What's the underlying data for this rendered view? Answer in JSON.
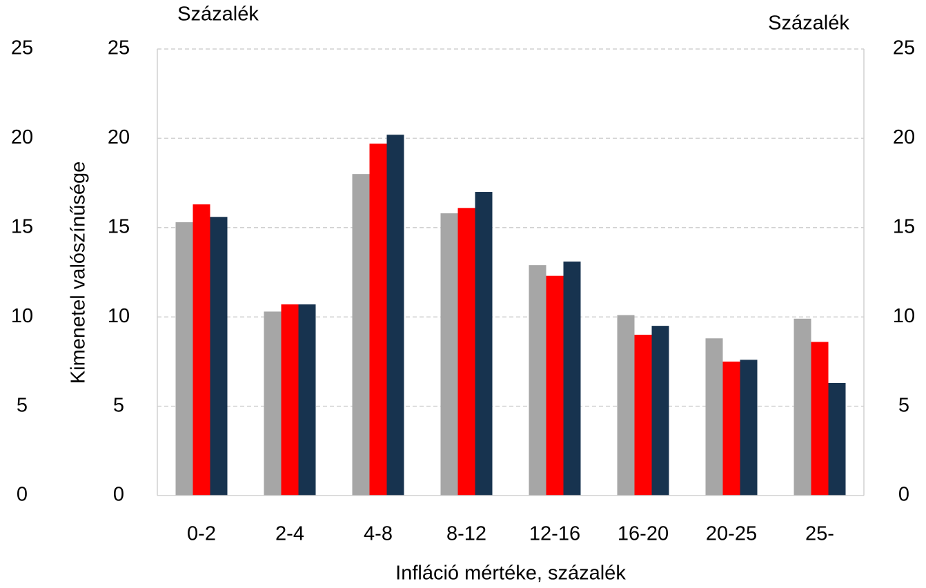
{
  "chart_data": {
    "type": "bar",
    "y_unit_label": "Százalék",
    "y2_unit_label": "Százalék",
    "ylabel": "Kimenetel valószínűsége",
    "xlabel": "Infláció mértéke, százalék",
    "categories": [
      "0-2",
      "2-4",
      "4-8",
      "8-12",
      "12-16",
      "16-20",
      "20-25",
      "25-"
    ],
    "series": [
      {
        "color": "#a6a6a6",
        "values": [
          15.3,
          10.3,
          18.0,
          15.8,
          12.9,
          10.1,
          8.8,
          9.9
        ]
      },
      {
        "color": "#ff0000",
        "values": [
          16.3,
          10.7,
          19.7,
          16.1,
          12.3,
          9.0,
          7.5,
          8.6
        ]
      },
      {
        "color": "#17334f",
        "values": [
          15.6,
          10.7,
          20.2,
          17.0,
          13.1,
          9.5,
          7.6,
          6.3
        ]
      }
    ],
    "ylim": [
      0,
      25
    ],
    "yticks": [
      0,
      5,
      10,
      15,
      20,
      25
    ],
    "y2lim": [
      0,
      25
    ],
    "y2ticks": [
      0,
      5,
      10,
      15,
      20,
      25
    ],
    "grid": true
  }
}
